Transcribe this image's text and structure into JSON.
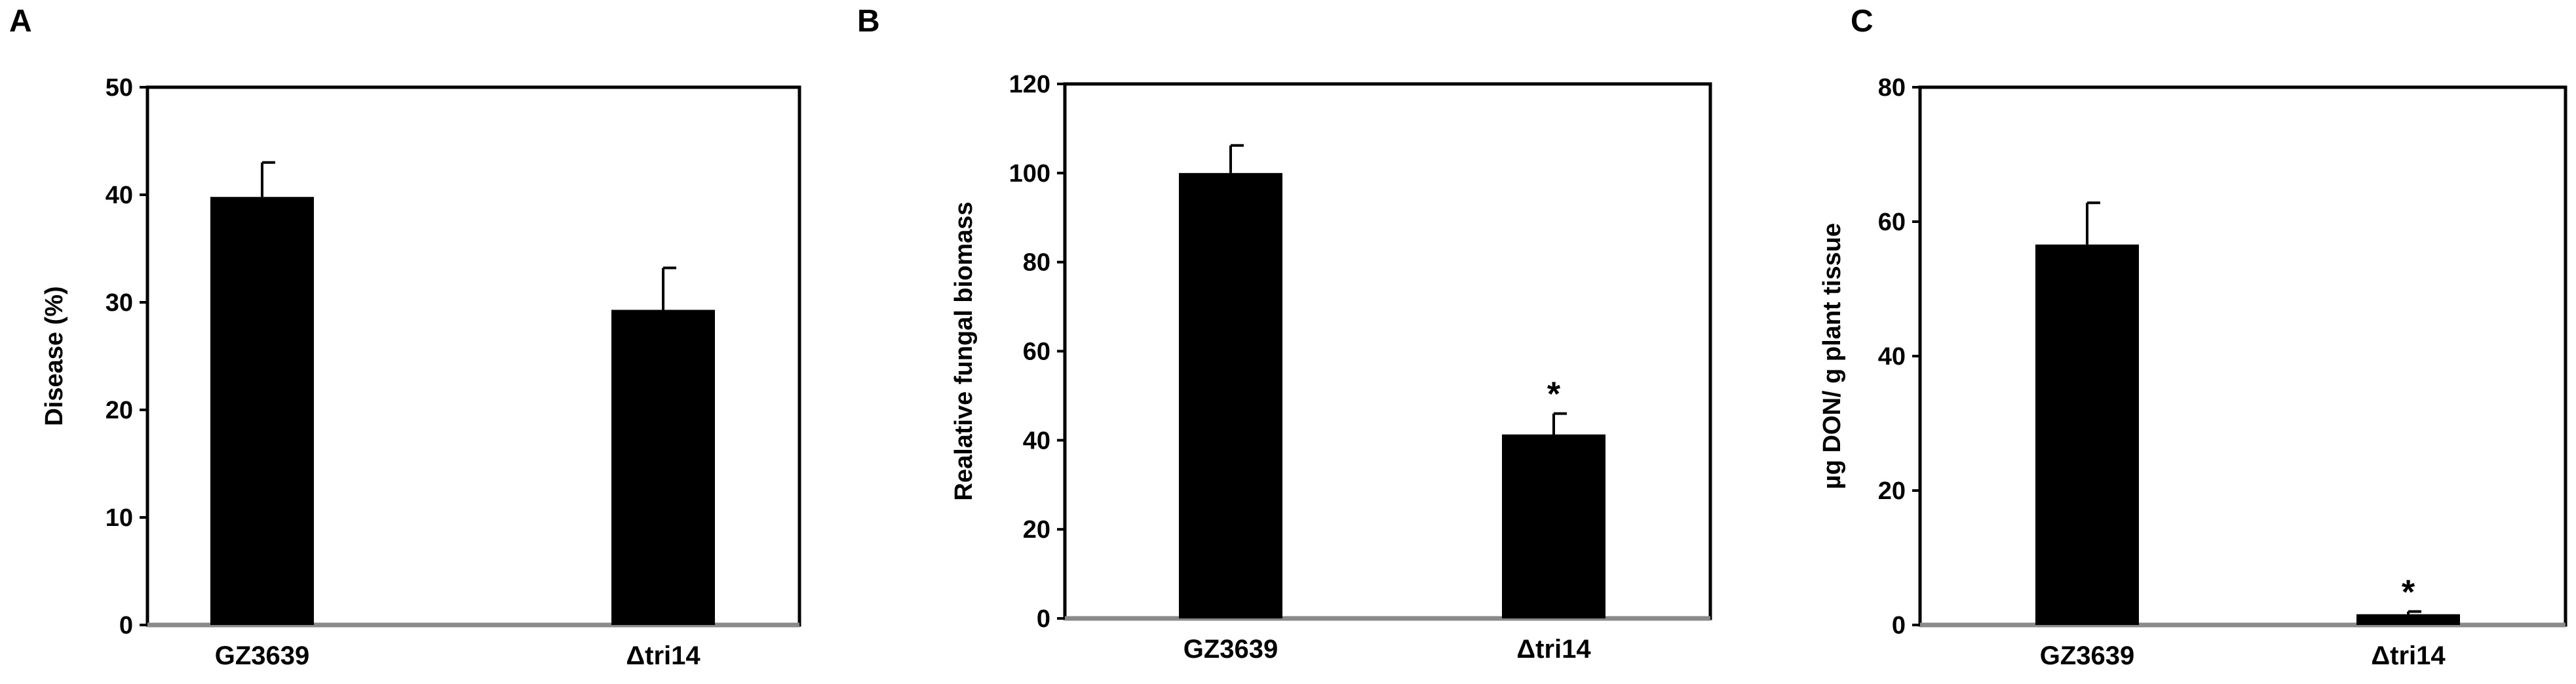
{
  "chart_data": [
    {
      "panel": "A",
      "type": "bar",
      "categories": [
        "GZ3639",
        "Δtri14"
      ],
      "values": [
        39.8,
        29.3
      ],
      "errors": [
        3.2,
        3.9
      ],
      "significance": [
        "",
        ""
      ],
      "title": "",
      "xlabel": "",
      "ylabel": "Disease (%)",
      "ylim": [
        0,
        50
      ],
      "yticks": [
        0,
        10,
        20,
        30,
        40,
        50
      ],
      "bar_color": "#000000",
      "grid": false
    },
    {
      "panel": "B",
      "type": "bar",
      "categories": [
        "GZ3639",
        "Δtri14"
      ],
      "values": [
        100,
        41.3
      ],
      "errors": [
        6.2,
        4.7
      ],
      "significance": [
        "",
        "*"
      ],
      "title": "",
      "xlabel": "",
      "ylabel": "Realative fungal biomass",
      "ylim": [
        0,
        120
      ],
      "yticks": [
        0,
        20,
        40,
        60,
        80,
        100,
        120
      ],
      "bar_color": "#000000",
      "grid": false
    },
    {
      "panel": "C",
      "type": "bar",
      "categories": [
        "GZ3639",
        "Δtri14"
      ],
      "values": [
        56.6,
        1.6
      ],
      "errors": [
        6.2,
        0.4
      ],
      "significance": [
        "",
        "*"
      ],
      "title": "",
      "xlabel": "",
      "ylabel": "µg DON/ g plant tissue",
      "ylim": [
        0,
        80
      ],
      "yticks": [
        0,
        20,
        40,
        60,
        80
      ],
      "bar_color": "#000000",
      "grid": false
    }
  ]
}
